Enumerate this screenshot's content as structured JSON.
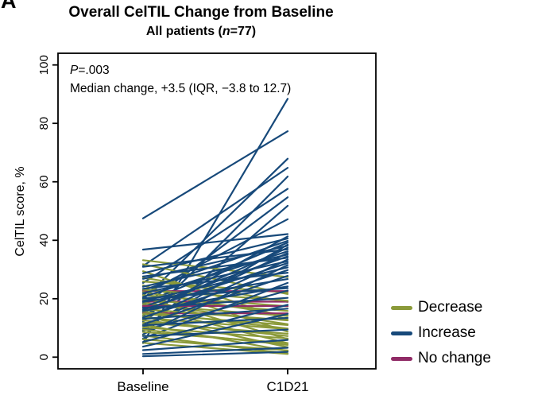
{
  "panel_label": "A",
  "title": "Overall CelTIL Change from Baseline",
  "subtitle": {
    "prefix": "All patients (",
    "n_italic": "n",
    "suffix": "=77)"
  },
  "annotation": {
    "p_italic": "P",
    "p_rest": "=.003",
    "median_line": "Median change, +3.5 (IQR, −3.8 to 12.7)"
  },
  "axes": {
    "y": {
      "label": "CelTIL score, %",
      "ticks": [
        0,
        20,
        40,
        60,
        80,
        100
      ],
      "range": [
        0,
        100
      ]
    },
    "x": {
      "ticks": [
        "Baseline",
        "C1D21"
      ]
    }
  },
  "legend": [
    {
      "id": "decrease",
      "label": "Decrease",
      "color": "#8B9A3A"
    },
    {
      "id": "increase",
      "label": "Increase",
      "color": "#17497A"
    },
    {
      "id": "no_change",
      "label": "No change",
      "color": "#902B66"
    }
  ],
  "chart_data": {
    "type": "line",
    "subtype": "paired-slope",
    "title": "Overall CelTIL Change from Baseline",
    "subtitle": "All patients (n=77)",
    "annotations": [
      "P=.003",
      "Median change, +3.5 (IQR, −3.8 to 12.7)"
    ],
    "x_categories": [
      "Baseline",
      "C1D21"
    ],
    "ylabel": "CelTIL score, %",
    "ylim": [
      0,
      100
    ],
    "y_ticks": [
      0,
      20,
      40,
      60,
      80,
      100
    ],
    "grid": false,
    "legend_position": "right",
    "patients": [
      [
        4.8,
        88.4,
        "increase"
      ],
      [
        47.5,
        77.3,
        "increase"
      ],
      [
        19.8,
        67.9,
        "increase"
      ],
      [
        31.2,
        64.8,
        "increase"
      ],
      [
        12.1,
        61.8,
        "increase"
      ],
      [
        25.4,
        57.6,
        "increase"
      ],
      [
        17.6,
        54.7,
        "increase"
      ],
      [
        8.9,
        51.8,
        "increase"
      ],
      [
        21.4,
        47.2,
        "increase"
      ],
      [
        33.2,
        27.4,
        "decrease"
      ],
      [
        31.8,
        21.6,
        "decrease"
      ],
      [
        29.4,
        12.8,
        "decrease"
      ],
      [
        27.2,
        18.9,
        "decrease"
      ],
      [
        25.9,
        22.1,
        "decrease"
      ],
      [
        24.6,
        8.7,
        "decrease"
      ],
      [
        36.8,
        42.1,
        "increase"
      ],
      [
        14.2,
        41.3,
        "increase"
      ],
      [
        28.7,
        40.6,
        "increase"
      ],
      [
        22.9,
        39.8,
        "increase"
      ],
      [
        18.4,
        39.2,
        "increase"
      ],
      [
        9.6,
        38.5,
        "increase"
      ],
      [
        22.6,
        22.6,
        "no_change"
      ],
      [
        19.0,
        19.0,
        "no_change"
      ],
      [
        23.1,
        19.3,
        "decrease"
      ],
      [
        22.3,
        14.2,
        "decrease"
      ],
      [
        21.2,
        17.4,
        "decrease"
      ],
      [
        20.4,
        6.2,
        "decrease"
      ],
      [
        19.6,
        15.8,
        "decrease"
      ],
      [
        18.7,
        11.3,
        "decrease"
      ],
      [
        17.9,
        14.1,
        "decrease"
      ],
      [
        17.2,
        4.8,
        "decrease"
      ],
      [
        26.8,
        38.1,
        "increase"
      ],
      [
        15.3,
        37.4,
        "increase"
      ],
      [
        30.9,
        36.9,
        "increase"
      ],
      [
        20.6,
        36.2,
        "increase"
      ],
      [
        12.8,
        35.6,
        "increase"
      ],
      [
        24.1,
        35.1,
        "increase"
      ],
      [
        17.1,
        34.5,
        "increase"
      ],
      [
        27.6,
        34.0,
        "increase"
      ],
      [
        10.4,
        33.4,
        "increase"
      ],
      [
        21.9,
        32.8,
        "increase"
      ],
      [
        17.5,
        17.5,
        "no_change"
      ],
      [
        15.0,
        15.0,
        "no_change"
      ],
      [
        16.4,
        12.6,
        "decrease"
      ],
      [
        15.6,
        9.8,
        "decrease"
      ],
      [
        14.8,
        11.0,
        "decrease"
      ],
      [
        14.1,
        3.4,
        "decrease"
      ],
      [
        13.4,
        9.6,
        "decrease"
      ],
      [
        12.6,
        7.2,
        "decrease"
      ],
      [
        11.8,
        8.0,
        "decrease"
      ],
      [
        16.2,
        32.2,
        "increase"
      ],
      [
        7.8,
        31.5,
        "increase"
      ],
      [
        19.2,
        30.7,
        "increase"
      ],
      [
        13.6,
        29.8,
        "increase"
      ],
      [
        23.4,
        28.9,
        "increase"
      ],
      [
        11.2,
        27.8,
        "increase"
      ],
      [
        18.9,
        26.7,
        "increase"
      ],
      [
        6.4,
        25.4,
        "increase"
      ],
      [
        15.8,
        24.2,
        "increase"
      ],
      [
        9.1,
        22.8,
        "increase"
      ],
      [
        11.1,
        2.1,
        "decrease"
      ],
      [
        10.2,
        6.4,
        "decrease"
      ],
      [
        9.4,
        4.2,
        "decrease"
      ],
      [
        8.6,
        4.8,
        "decrease"
      ],
      [
        7.4,
        1.2,
        "decrease"
      ],
      [
        6.1,
        2.3,
        "decrease"
      ],
      [
        4.9,
        1.1,
        "decrease"
      ],
      [
        20.1,
        23.6,
        "increase"
      ],
      [
        13.1,
        16.6,
        "increase"
      ],
      [
        5.2,
        17.9,
        "increase"
      ],
      [
        16.8,
        20.3,
        "increase"
      ],
      [
        3.6,
        14.8,
        "increase"
      ],
      [
        10.9,
        13.4,
        "increase"
      ],
      [
        7.2,
        9.4,
        "increase"
      ],
      [
        2.4,
        5.9,
        "increase"
      ],
      [
        1.1,
        3.2,
        "increase"
      ],
      [
        0.3,
        1.8,
        "increase"
      ]
    ]
  }
}
